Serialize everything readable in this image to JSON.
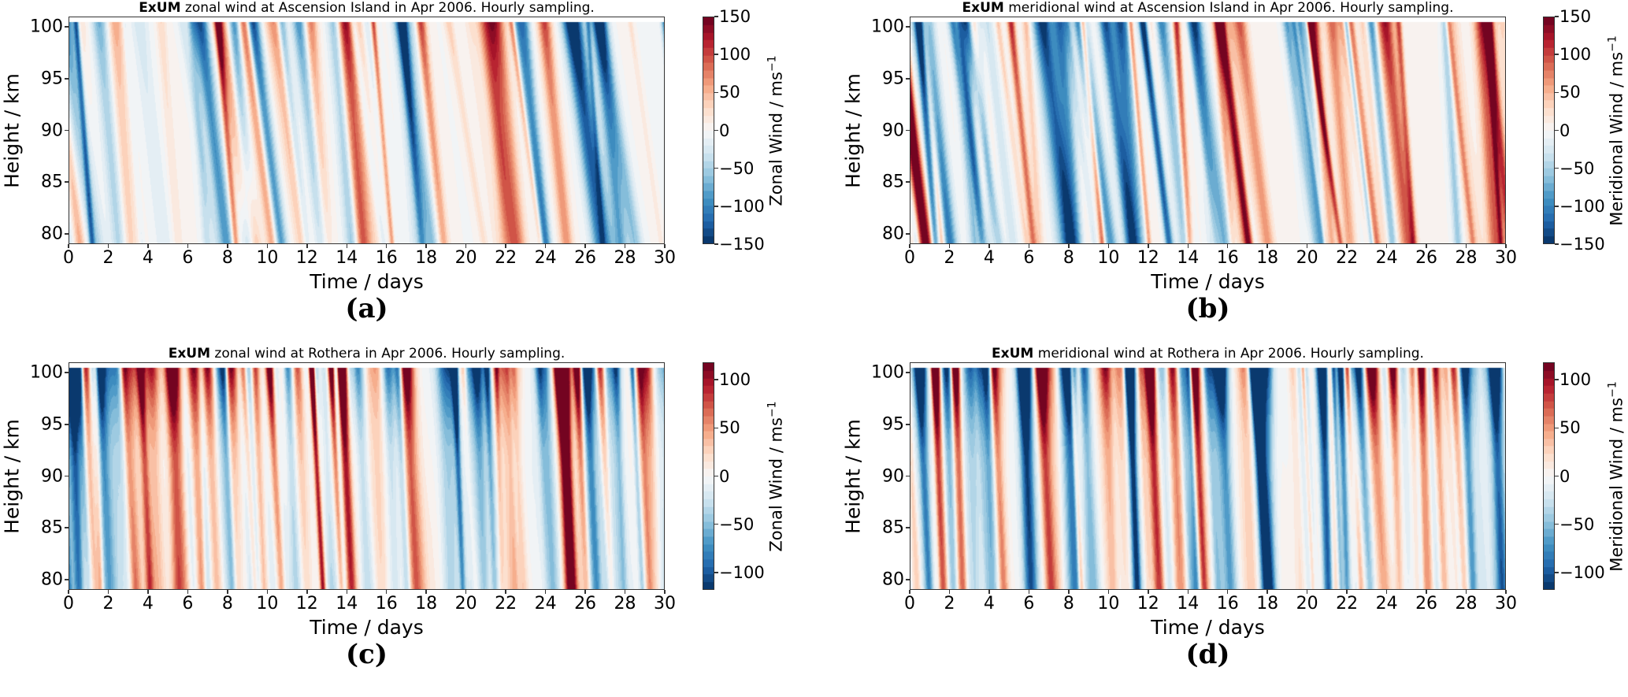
{
  "chart_data": [
    {
      "type": "heatmap",
      "panel_label": "(a)",
      "title_bold": "ExUM",
      "title": "zonal wind at Ascension Island in Apr 2006. Hourly sampling.",
      "xlabel": "Time / days",
      "ylabel": "Height / km",
      "xlim": [
        0,
        30
      ],
      "ylim": [
        79,
        101
      ],
      "xticks": [
        "0",
        "2",
        "4",
        "6",
        "8",
        "10",
        "12",
        "14",
        "16",
        "18",
        "20",
        "22",
        "24",
        "26",
        "28",
        "30"
      ],
      "yticks": [
        "80",
        "85",
        "90",
        "95",
        "100"
      ],
      "colorbar": {
        "label": "Zonal Wind / ms",
        "unit_sup": "−1",
        "colormap": "RdBu_r",
        "clim": [
          -150,
          150
        ],
        "ticks": [
          "−150",
          "−100",
          "−50",
          "0",
          "50",
          "100",
          "150"
        ]
      }
    },
    {
      "type": "heatmap",
      "panel_label": "(b)",
      "title_bold": "ExUM",
      "title": "meridional wind at Ascension Island in Apr 2006. Hourly sampling.",
      "xlabel": "Time / days",
      "ylabel": "Height / km",
      "xlim": [
        0,
        30
      ],
      "ylim": [
        79,
        101
      ],
      "xticks": [
        "0",
        "2",
        "4",
        "6",
        "8",
        "10",
        "12",
        "14",
        "16",
        "18",
        "20",
        "22",
        "24",
        "26",
        "28",
        "30"
      ],
      "yticks": [
        "80",
        "85",
        "90",
        "95",
        "100"
      ],
      "colorbar": {
        "label": "Meridional Wind / ms",
        "unit_sup": "−1",
        "colormap": "RdBu_r",
        "clim": [
          -150,
          150
        ],
        "ticks": [
          "−150",
          "−100",
          "−50",
          "0",
          "50",
          "100",
          "150"
        ]
      }
    },
    {
      "type": "heatmap",
      "panel_label": "(c)",
      "title_bold": "ExUM",
      "title": "zonal wind at Rothera in Apr 2006. Hourly sampling.",
      "xlabel": "Time / days",
      "ylabel": "Height / km",
      "xlim": [
        0,
        30
      ],
      "ylim": [
        79,
        101
      ],
      "xticks": [
        "0",
        "2",
        "4",
        "6",
        "8",
        "10",
        "12",
        "14",
        "16",
        "18",
        "20",
        "22",
        "24",
        "26",
        "28",
        "30"
      ],
      "yticks": [
        "80",
        "85",
        "90",
        "95",
        "100"
      ],
      "colorbar": {
        "label": "Zonal Wind / ms",
        "unit_sup": "−1",
        "colormap": "RdBu_r",
        "clim": [
          -118,
          118
        ],
        "ticks": [
          "−100",
          "−50",
          "0",
          "50",
          "100"
        ]
      }
    },
    {
      "type": "heatmap",
      "panel_label": "(d)",
      "title_bold": "ExUM",
      "title": "meridional wind at Rothera in Apr 2006. Hourly sampling.",
      "xlabel": "Time / days",
      "ylabel": "Height / km",
      "xlim": [
        0,
        30
      ],
      "ylim": [
        79,
        101
      ],
      "xticks": [
        "0",
        "2",
        "4",
        "6",
        "8",
        "10",
        "12",
        "14",
        "16",
        "18",
        "20",
        "22",
        "24",
        "26",
        "28",
        "30"
      ],
      "yticks": [
        "80",
        "85",
        "90",
        "95",
        "100"
      ],
      "colorbar": {
        "label": "Meridional Wind / ms",
        "unit_sup": "−1",
        "colormap": "RdBu_r",
        "clim": [
          -118,
          118
        ],
        "ticks": [
          "−100",
          "−50",
          "0",
          "50",
          "100"
        ]
      }
    }
  ],
  "colors": {
    "colormap_stops": [
      "#053061",
      "#2166ac",
      "#4393c3",
      "#92c5de",
      "#d1e5f0",
      "#f7f7f7",
      "#fddbc7",
      "#f4a582",
      "#d6604d",
      "#b2182b",
      "#67001f"
    ]
  }
}
